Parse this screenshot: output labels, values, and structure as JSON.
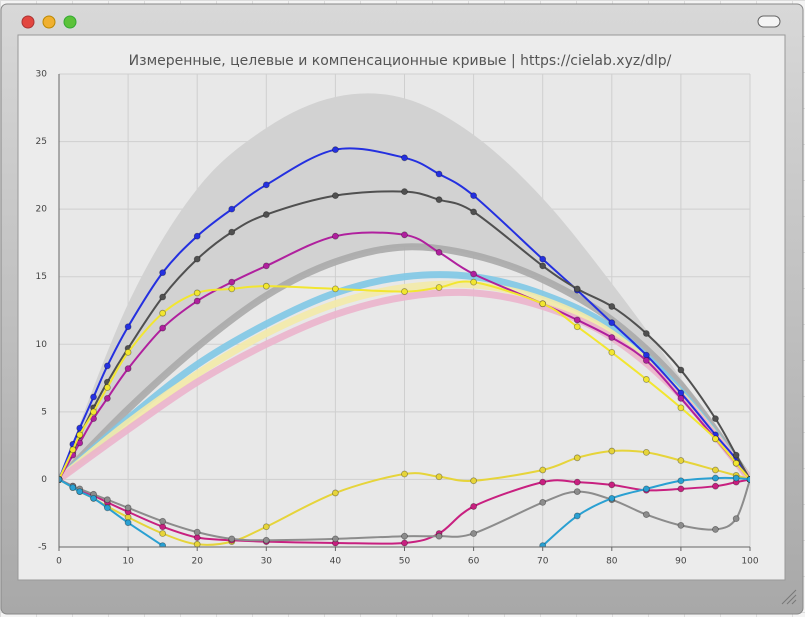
{
  "chart_data": {
    "type": "line",
    "title": "Измеренные, целевые и компенсационные кривые | https://cielab.xyz/dlp/",
    "xlim": [
      0,
      100
    ],
    "ylim": [
      -5,
      30
    ],
    "xticks": [
      0,
      10,
      20,
      30,
      40,
      50,
      60,
      70,
      80,
      90,
      100
    ],
    "yticks": [
      -5,
      0,
      5,
      10,
      15,
      20,
      25,
      30
    ],
    "grid": true,
    "band": {
      "color": "#d2d2d2",
      "x": [
        0,
        10,
        20,
        30,
        40,
        50,
        60,
        70,
        80,
        90,
        100
      ],
      "upper": [
        0,
        13,
        21.5,
        26,
        28.3,
        28.2,
        25.5,
        20.8,
        14.5,
        7.5,
        0
      ],
      "lower": [
        0,
        5.2,
        9.8,
        13.6,
        16.1,
        17.2,
        16.6,
        14.8,
        11.8,
        7,
        0
      ]
    },
    "target_series": [
      {
        "color": "#aaaaaa",
        "x": [
          0,
          10,
          20,
          30,
          40,
          50,
          60,
          70,
          80,
          90,
          100
        ],
        "values": [
          0,
          5.2,
          9.8,
          13.6,
          16.1,
          17.2,
          16.6,
          14.8,
          11.8,
          7,
          0
        ]
      },
      {
        "color": "#80c8e6",
        "x": [
          0,
          10,
          20,
          30,
          40,
          50,
          60,
          70,
          80,
          90,
          100
        ],
        "values": [
          0,
          4.5,
          8.5,
          11.5,
          13.8,
          15.0,
          15.0,
          13.7,
          11.2,
          6.5,
          0
        ]
      },
      {
        "color": "#f3eaa8",
        "x": [
          0,
          10,
          20,
          30,
          40,
          50,
          60,
          70,
          80,
          90,
          100
        ],
        "values": [
          0,
          4.2,
          7.8,
          10.8,
          13.0,
          14.2,
          14.4,
          13.3,
          10.8,
          6.3,
          0
        ]
      },
      {
        "color": "#ebb4cc",
        "x": [
          0,
          10,
          20,
          30,
          40,
          50,
          60,
          70,
          80,
          90,
          100
        ],
        "values": [
          0,
          3.7,
          7.2,
          10.0,
          12.2,
          13.5,
          13.8,
          12.8,
          10.5,
          6.2,
          0
        ]
      }
    ],
    "x": [
      0,
      2,
      3,
      5,
      7,
      10,
      15,
      20,
      25,
      30,
      40,
      50,
      55,
      60,
      70,
      75,
      80,
      85,
      90,
      95,
      98,
      100
    ],
    "series": [
      {
        "color": "#2430e0",
        "values": [
          0,
          2.6,
          3.8,
          6.1,
          8.4,
          11.3,
          15.3,
          18.0,
          20.0,
          21.8,
          24.4,
          23.8,
          22.6,
          21.0,
          16.3,
          14.0,
          11.6,
          9.2,
          6.4,
          3.3,
          1.5,
          0
        ]
      },
      {
        "color": "#505050",
        "values": [
          0,
          2.0,
          3.2,
          5.3,
          7.2,
          9.7,
          13.5,
          16.3,
          18.3,
          19.6,
          21.0,
          21.3,
          20.7,
          19.8,
          15.8,
          14.1,
          12.8,
          10.8,
          8.1,
          4.5,
          1.8,
          0
        ]
      },
      {
        "color": "#b0209e",
        "values": [
          0,
          1.8,
          2.7,
          4.5,
          6.0,
          8.2,
          11.2,
          13.2,
          14.6,
          15.8,
          18.0,
          18.1,
          16.8,
          15.2,
          13.0,
          11.8,
          10.5,
          8.8,
          6.0,
          3.0,
          1.2,
          0
        ]
      },
      {
        "color": "#f2e630",
        "values": [
          0,
          2.2,
          3.3,
          5.0,
          6.8,
          9.4,
          12.3,
          13.8,
          14.1,
          14.3,
          14.1,
          13.9,
          14.2,
          14.6,
          13.0,
          11.3,
          9.4,
          7.4,
          5.3,
          3.0,
          1.2,
          0
        ]
      },
      {
        "color": "#e6d43a",
        "values": [
          0,
          -0.6,
          -0.9,
          -1.4,
          -2.0,
          -2.8,
          -4.0,
          -4.8,
          -4.6,
          -3.5,
          -1.0,
          0.4,
          0.2,
          -0.1,
          0.7,
          1.6,
          2.1,
          2.0,
          1.4,
          0.7,
          0.3,
          0
        ]
      },
      {
        "color": "#c82080",
        "values": [
          0,
          -0.5,
          -0.8,
          -1.2,
          -1.7,
          -2.4,
          -3.5,
          -4.3,
          -4.5,
          -4.6,
          -4.7,
          -4.7,
          -4.0,
          -2.0,
          -0.2,
          -0.2,
          -0.4,
          -0.8,
          -0.7,
          -0.5,
          -0.2,
          0
        ]
      },
      {
        "color": "#8c8c8c",
        "values": [
          0,
          -0.5,
          -0.7,
          -1.1,
          -1.5,
          -2.1,
          -3.1,
          -3.9,
          -4.4,
          -4.5,
          -4.4,
          -4.2,
          -4.2,
          -4.0,
          -1.7,
          -0.9,
          -1.5,
          -2.6,
          -3.4,
          -3.7,
          -2.9,
          0
        ]
      },
      {
        "color": "#2aa0d2",
        "values": [
          0,
          -0.6,
          -0.9,
          -1.4,
          -2.1,
          -3.2,
          -4.9,
          null,
          null,
          null,
          null,
          null,
          null,
          null,
          -4.9,
          -2.7,
          -1.4,
          -0.7,
          -0.1,
          0.1,
          0.1,
          0
        ]
      }
    ]
  }
}
